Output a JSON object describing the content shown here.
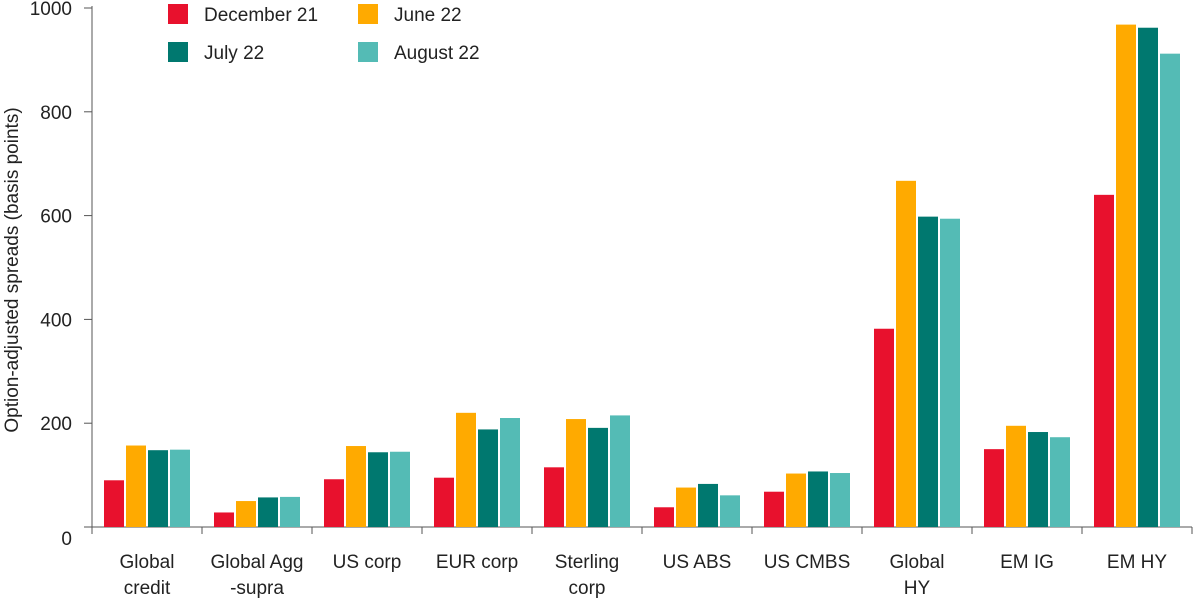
{
  "chart_data": {
    "type": "bar",
    "title": "",
    "xlabel": "",
    "ylabel": "Option-adjusted spreads (basis points)",
    "ylim": [
      0,
      1000
    ],
    "yticks": [
      0,
      200,
      400,
      600,
      800,
      1000
    ],
    "grid": false,
    "legend_position": "top-left",
    "categories": [
      [
        "Global",
        "credit"
      ],
      [
        "Global Agg",
        "-supra"
      ],
      [
        "US corp"
      ],
      [
        "EUR corp"
      ],
      [
        "Sterling",
        "corp"
      ],
      [
        "US ABS"
      ],
      [
        "US CMBS"
      ],
      [
        "Global",
        "HY"
      ],
      [
        "EM IG"
      ],
      [
        "EM HY"
      ]
    ],
    "series": [
      {
        "name": "December 21",
        "color": "#E8112D",
        "values": [
          90,
          28,
          92,
          95,
          115,
          38,
          68,
          382,
          150,
          640
        ]
      },
      {
        "name": "June 22",
        "color": "#FFAA00",
        "values": [
          157,
          50,
          156,
          220,
          208,
          76,
          103,
          667,
          195,
          968
        ]
      },
      {
        "name": "July 22",
        "color": "#00786F",
        "values": [
          148,
          57,
          144,
          188,
          191,
          83,
          107,
          598,
          183,
          962
        ]
      },
      {
        "name": "August 22",
        "color": "#54BBB5",
        "values": [
          149,
          58,
          145,
          210,
          215,
          61,
          104,
          594,
          173,
          912
        ]
      }
    ]
  }
}
